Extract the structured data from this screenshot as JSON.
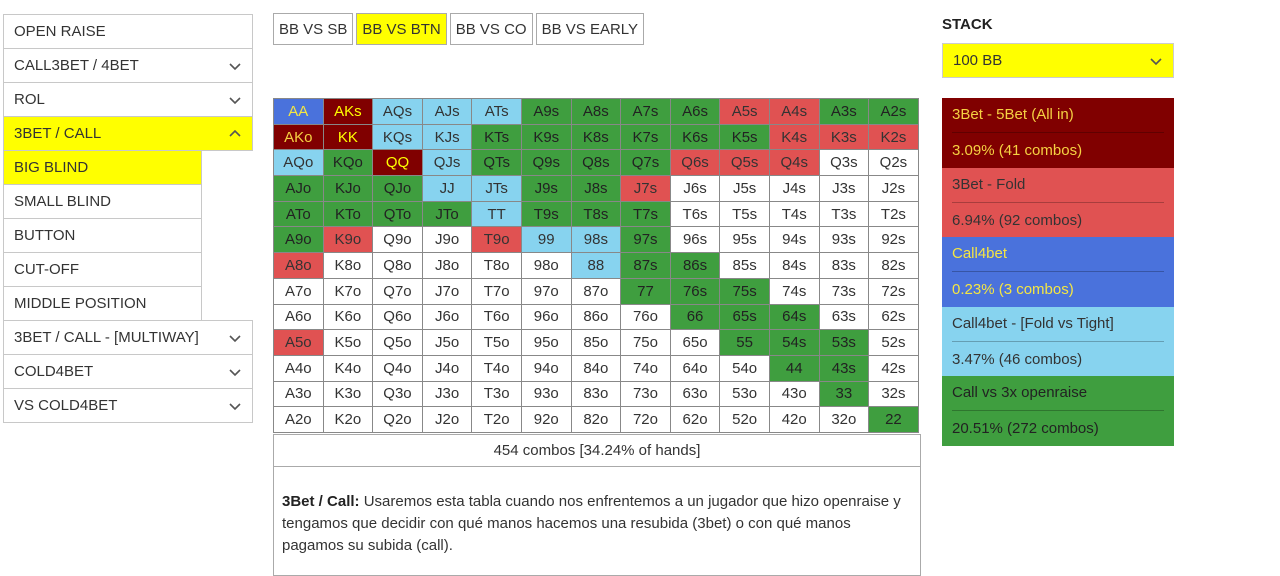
{
  "sidebar": {
    "items": [
      {
        "label": "OPEN RAISE",
        "chevron": "none",
        "active": false
      },
      {
        "label": "CALL3BET / 4BET",
        "chevron": "down",
        "active": false
      },
      {
        "label": "ROL",
        "chevron": "down",
        "active": false
      },
      {
        "label": "3BET / CALL",
        "chevron": "up",
        "active": true
      }
    ],
    "subitems": [
      {
        "label": "BIG BLIND",
        "active": true
      },
      {
        "label": "SMALL BLIND",
        "active": false
      },
      {
        "label": "BUTTON",
        "active": false
      },
      {
        "label": "CUT-OFF",
        "active": false
      },
      {
        "label": "MIDDLE POSITION",
        "active": false
      }
    ],
    "items_after": [
      {
        "label": "3BET / CALL - [MULTIWAY]",
        "chevron": "down"
      },
      {
        "label": "COLD4BET",
        "chevron": "down"
      },
      {
        "label": "VS COLD4BET",
        "chevron": "down"
      }
    ]
  },
  "tabs": [
    {
      "label": "BB VS SB",
      "active": false
    },
    {
      "label": "BB VS BTN",
      "active": true
    },
    {
      "label": "BB VS CO",
      "active": false
    },
    {
      "label": "BB VS EARLY",
      "active": false
    }
  ],
  "grid": {
    "rows": [
      [
        [
          "AA",
          "b"
        ],
        [
          "AKs",
          "y"
        ],
        [
          "AQs",
          "lb"
        ],
        [
          "AJs",
          "lb"
        ],
        [
          "ATs",
          "lb"
        ],
        [
          "A9s",
          "g"
        ],
        [
          "A8s",
          "g"
        ],
        [
          "A7s",
          "g"
        ],
        [
          "A6s",
          "g"
        ],
        [
          "A5s",
          "r"
        ],
        [
          "A4s",
          "r"
        ],
        [
          "A3s",
          "g"
        ],
        [
          "A2s",
          "g"
        ]
      ],
      [
        [
          "AKo",
          "dr"
        ],
        [
          "KK",
          "y"
        ],
        [
          "KQs",
          "lb"
        ],
        [
          "KJs",
          "lb"
        ],
        [
          "KTs",
          "g"
        ],
        [
          "K9s",
          "g"
        ],
        [
          "K8s",
          "g"
        ],
        [
          "K7s",
          "g"
        ],
        [
          "K6s",
          "g"
        ],
        [
          "K5s",
          "g"
        ],
        [
          "K4s",
          "r"
        ],
        [
          "K3s",
          "r"
        ],
        [
          "K2s",
          "r"
        ]
      ],
      [
        [
          "AQo",
          "lb"
        ],
        [
          "KQo",
          "g"
        ],
        [
          "QQ",
          "y"
        ],
        [
          "QJs",
          "lb"
        ],
        [
          "QTs",
          "g"
        ],
        [
          "Q9s",
          "g"
        ],
        [
          "Q8s",
          "g"
        ],
        [
          "Q7s",
          "g"
        ],
        [
          "Q6s",
          "r"
        ],
        [
          "Q5s",
          "r"
        ],
        [
          "Q4s",
          "r"
        ],
        [
          "Q3s",
          "w"
        ],
        [
          "Q2s",
          "w"
        ]
      ],
      [
        [
          "AJo",
          "g"
        ],
        [
          "KJo",
          "g"
        ],
        [
          "QJo",
          "g"
        ],
        [
          "JJ",
          "lb"
        ],
        [
          "JTs",
          "lb"
        ],
        [
          "J9s",
          "g"
        ],
        [
          "J8s",
          "g"
        ],
        [
          "J7s",
          "r"
        ],
        [
          "J6s",
          "w"
        ],
        [
          "J5s",
          "w"
        ],
        [
          "J4s",
          "w"
        ],
        [
          "J3s",
          "w"
        ],
        [
          "J2s",
          "w"
        ]
      ],
      [
        [
          "ATo",
          "g"
        ],
        [
          "KTo",
          "g"
        ],
        [
          "QTo",
          "g"
        ],
        [
          "JTo",
          "g"
        ],
        [
          "TT",
          "lb"
        ],
        [
          "T9s",
          "g"
        ],
        [
          "T8s",
          "g"
        ],
        [
          "T7s",
          "g"
        ],
        [
          "T6s",
          "w"
        ],
        [
          "T5s",
          "w"
        ],
        [
          "T4s",
          "w"
        ],
        [
          "T3s",
          "w"
        ],
        [
          "T2s",
          "w"
        ]
      ],
      [
        [
          "A9o",
          "g"
        ],
        [
          "K9o",
          "r"
        ],
        [
          "Q9o",
          "w"
        ],
        [
          "J9o",
          "w"
        ],
        [
          "T9o",
          "r"
        ],
        [
          "99",
          "lb"
        ],
        [
          "98s",
          "lb"
        ],
        [
          "97s",
          "g"
        ],
        [
          "96s",
          "w"
        ],
        [
          "95s",
          "w"
        ],
        [
          "94s",
          "w"
        ],
        [
          "93s",
          "w"
        ],
        [
          "92s",
          "w"
        ]
      ],
      [
        [
          "A8o",
          "r"
        ],
        [
          "K8o",
          "w"
        ],
        [
          "Q8o",
          "w"
        ],
        [
          "J8o",
          "w"
        ],
        [
          "T8o",
          "w"
        ],
        [
          "98o",
          "w"
        ],
        [
          "88",
          "lb"
        ],
        [
          "87s",
          "g"
        ],
        [
          "86s",
          "g"
        ],
        [
          "85s",
          "w"
        ],
        [
          "84s",
          "w"
        ],
        [
          "83s",
          "w"
        ],
        [
          "82s",
          "w"
        ]
      ],
      [
        [
          "A7o",
          "w"
        ],
        [
          "K7o",
          "w"
        ],
        [
          "Q7o",
          "w"
        ],
        [
          "J7o",
          "w"
        ],
        [
          "T7o",
          "w"
        ],
        [
          "97o",
          "w"
        ],
        [
          "87o",
          "w"
        ],
        [
          "77",
          "g"
        ],
        [
          "76s",
          "g"
        ],
        [
          "75s",
          "g"
        ],
        [
          "74s",
          "w"
        ],
        [
          "73s",
          "w"
        ],
        [
          "72s",
          "w"
        ]
      ],
      [
        [
          "A6o",
          "w"
        ],
        [
          "K6o",
          "w"
        ],
        [
          "Q6o",
          "w"
        ],
        [
          "J6o",
          "w"
        ],
        [
          "T6o",
          "w"
        ],
        [
          "96o",
          "w"
        ],
        [
          "86o",
          "w"
        ],
        [
          "76o",
          "w"
        ],
        [
          "66",
          "g"
        ],
        [
          "65s",
          "g"
        ],
        [
          "64s",
          "g"
        ],
        [
          "63s",
          "w"
        ],
        [
          "62s",
          "w"
        ]
      ],
      [
        [
          "A5o",
          "r"
        ],
        [
          "K5o",
          "w"
        ],
        [
          "Q5o",
          "w"
        ],
        [
          "J5o",
          "w"
        ],
        [
          "T5o",
          "w"
        ],
        [
          "95o",
          "w"
        ],
        [
          "85o",
          "w"
        ],
        [
          "75o",
          "w"
        ],
        [
          "65o",
          "w"
        ],
        [
          "55",
          "g"
        ],
        [
          "54s",
          "g"
        ],
        [
          "53s",
          "g"
        ],
        [
          "52s",
          "w"
        ]
      ],
      [
        [
          "A4o",
          "w"
        ],
        [
          "K4o",
          "w"
        ],
        [
          "Q4o",
          "w"
        ],
        [
          "J4o",
          "w"
        ],
        [
          "T4o",
          "w"
        ],
        [
          "94o",
          "w"
        ],
        [
          "84o",
          "w"
        ],
        [
          "74o",
          "w"
        ],
        [
          "64o",
          "w"
        ],
        [
          "54o",
          "w"
        ],
        [
          "44",
          "g"
        ],
        [
          "43s",
          "g"
        ],
        [
          "42s",
          "w"
        ]
      ],
      [
        [
          "A3o",
          "w"
        ],
        [
          "K3o",
          "w"
        ],
        [
          "Q3o",
          "w"
        ],
        [
          "J3o",
          "w"
        ],
        [
          "T3o",
          "w"
        ],
        [
          "93o",
          "w"
        ],
        [
          "83o",
          "w"
        ],
        [
          "73o",
          "w"
        ],
        [
          "63o",
          "w"
        ],
        [
          "53o",
          "w"
        ],
        [
          "43o",
          "w"
        ],
        [
          "33",
          "g"
        ],
        [
          "32s",
          "w"
        ]
      ],
      [
        [
          "A2o",
          "w"
        ],
        [
          "K2o",
          "w"
        ],
        [
          "Q2o",
          "w"
        ],
        [
          "J2o",
          "w"
        ],
        [
          "T2o",
          "w"
        ],
        [
          "92o",
          "w"
        ],
        [
          "82o",
          "w"
        ],
        [
          "72o",
          "w"
        ],
        [
          "62o",
          "w"
        ],
        [
          "52o",
          "w"
        ],
        [
          "42o",
          "w"
        ],
        [
          "32o",
          "w"
        ],
        [
          "22",
          "g"
        ]
      ]
    ]
  },
  "combos_summary": "454 combos [34.24% of hands]",
  "description": {
    "bold": "3Bet / Call:",
    "text": " Usaremos esta tabla cuando nos enfrentemos a un jugador que hizo openraise y tengamos que decidir con qué manos hacemos una resubida (3bet) o con qué manos pagamos su subida (call)."
  },
  "stack": {
    "label": "STACK",
    "value": "100 BB"
  },
  "legend": [
    {
      "title": "3Bet - 5Bet (All in)",
      "value": "3.09%  (41 combos)",
      "color": "#800000"
    },
    {
      "title": "3Bet - Fold",
      "value": "6.94%  (92 combos)",
      "color": "#e05252"
    },
    {
      "title": "Call4bet",
      "value": "0.23%  (3 combos)",
      "color": "#4a72dc"
    },
    {
      "title": "Call4bet - [Fold vs Tight]",
      "value": "3.47%  (46 combos)",
      "color": "#87d3ef"
    },
    {
      "title": "Call vs 3x openraise",
      "value": "20.51%  (272 combos)",
      "color": "#3f9e3f"
    }
  ]
}
